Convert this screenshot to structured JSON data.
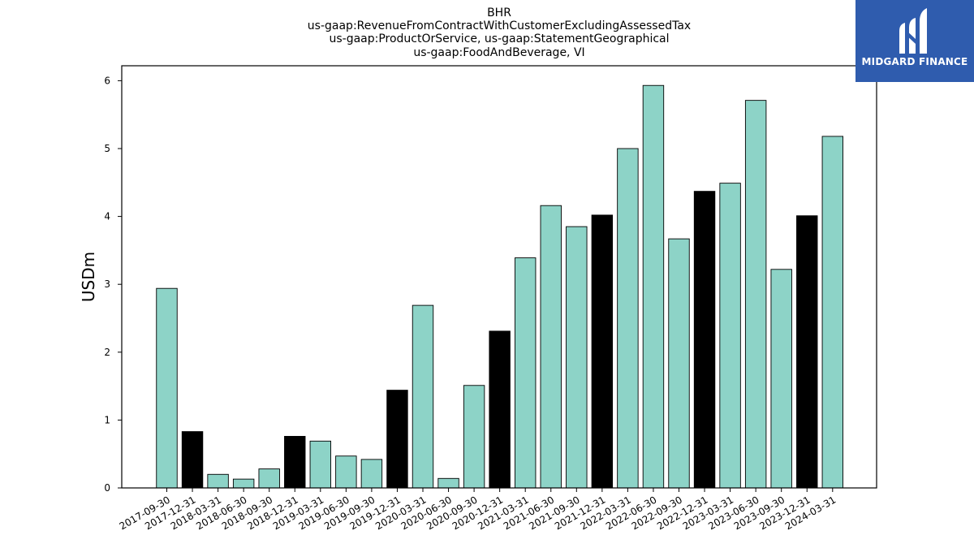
{
  "chart_data": {
    "type": "bar",
    "title_lines": [
      "BHR",
      "us-gaap:RevenueFromContractWithCustomerExcludingAssessedTax",
      "us-gaap:ProductOrService, us-gaap:StatementGeographical",
      "us-gaap:FoodAndBeverage, VI"
    ],
    "ylabel": "USDm",
    "xlabel": "",
    "ylim": [
      0,
      6.22
    ],
    "yticks": [
      0,
      1,
      2,
      3,
      4,
      5,
      6
    ],
    "categories": [
      "2017-09-30",
      "2017-12-31",
      "2018-03-31",
      "2018-06-30",
      "2018-09-30",
      "2018-12-31",
      "2019-03-31",
      "2019-06-30",
      "2019-09-30",
      "2019-12-31",
      "2020-03-31",
      "2020-06-30",
      "2020-09-30",
      "2020-12-31",
      "2021-03-31",
      "2021-06-30",
      "2021-09-30",
      "2021-12-31",
      "2022-03-31",
      "2022-06-30",
      "2022-09-30",
      "2022-12-31",
      "2023-03-31",
      "2023-06-30",
      "2023-09-30",
      "2023-12-31",
      "2024-03-31"
    ],
    "values": [
      2.94,
      0.83,
      0.2,
      0.13,
      0.28,
      0.76,
      0.69,
      0.47,
      0.42,
      1.44,
      2.69,
      0.14,
      1.51,
      2.31,
      3.39,
      4.16,
      3.85,
      4.02,
      5.0,
      5.93,
      3.67,
      4.37,
      4.49,
      5.71,
      3.22,
      4.01,
      5.18
    ],
    "bar_colors": [
      "#8dd3c7",
      "#000000",
      "#8dd3c7",
      "#8dd3c7",
      "#8dd3c7",
      "#000000",
      "#8dd3c7",
      "#8dd3c7",
      "#8dd3c7",
      "#000000",
      "#8dd3c7",
      "#8dd3c7",
      "#8dd3c7",
      "#000000",
      "#8dd3c7",
      "#8dd3c7",
      "#8dd3c7",
      "#000000",
      "#8dd3c7",
      "#8dd3c7",
      "#8dd3c7",
      "#000000",
      "#8dd3c7",
      "#8dd3c7",
      "#8dd3c7",
      "#000000",
      "#8dd3c7"
    ],
    "grid": false,
    "legend": "none"
  },
  "logo": {
    "text": "MIDGARD FINANCE",
    "background": "#2f5cae"
  }
}
